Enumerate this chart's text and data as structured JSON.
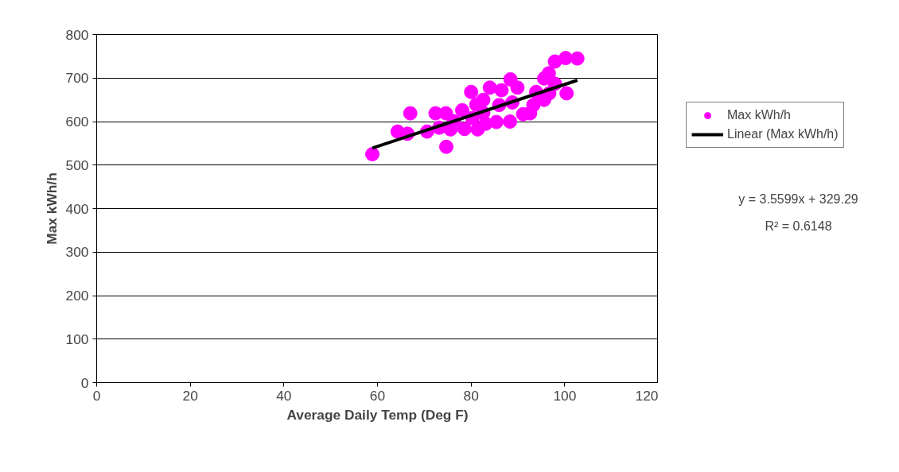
{
  "chart_data": {
    "type": "scatter",
    "xlabel": "Average Daily Temp (Deg F)",
    "ylabel": "Max kWh/h",
    "xlim": [
      0,
      120
    ],
    "xticks": [
      0,
      20,
      40,
      60,
      80,
      100,
      120
    ],
    "ylim": [
      0,
      800
    ],
    "yticks": [
      0,
      100,
      200,
      300,
      400,
      500,
      600,
      700,
      800
    ],
    "grid": "y",
    "legend": "right",
    "marker": "circle",
    "series": [
      {
        "name": "Max kWh/h",
        "color": "#ff00ff",
        "x": [
          58.9,
          64.3,
          66.4,
          67.0,
          70.6,
          72.4,
          74.6,
          73.2,
          75.6,
          74.7,
          78.1,
          78.6,
          80.0,
          81.1,
          81.4,
          82.6,
          84.0,
          83.1,
          85.4,
          86.5,
          88.4,
          88.3,
          89.9,
          91.1,
          92.6,
          93.9,
          95.6,
          95.6,
          96.6,
          97.9,
          97.9,
          100.2,
          102.7,
          100.4,
          96.7,
          86.0,
          80.3,
          76.3,
          82.6,
          88.8,
          93.3
        ],
        "values": [
          525,
          577,
          572,
          619,
          577,
          619,
          619,
          586,
          582,
          542,
          626,
          583,
          668,
          639,
          582,
          650,
          678,
          595,
          599,
          672,
          697,
          600,
          678,
          617,
          619,
          668,
          699,
          650,
          711,
          687,
          738,
          746,
          745,
          665,
          665,
          638,
          608,
          601,
          620,
          644,
          638
        ]
      },
      {
        "name": "Linear (Max kWh/h)",
        "color": "#000000",
        "type": "line",
        "marker": "none",
        "x": [
          58.9,
          102.7
        ],
        "values": [
          539,
          695
        ]
      }
    ],
    "annotations": [
      "y = 3.5599x + 329.29",
      "R² = 0.6148"
    ]
  }
}
